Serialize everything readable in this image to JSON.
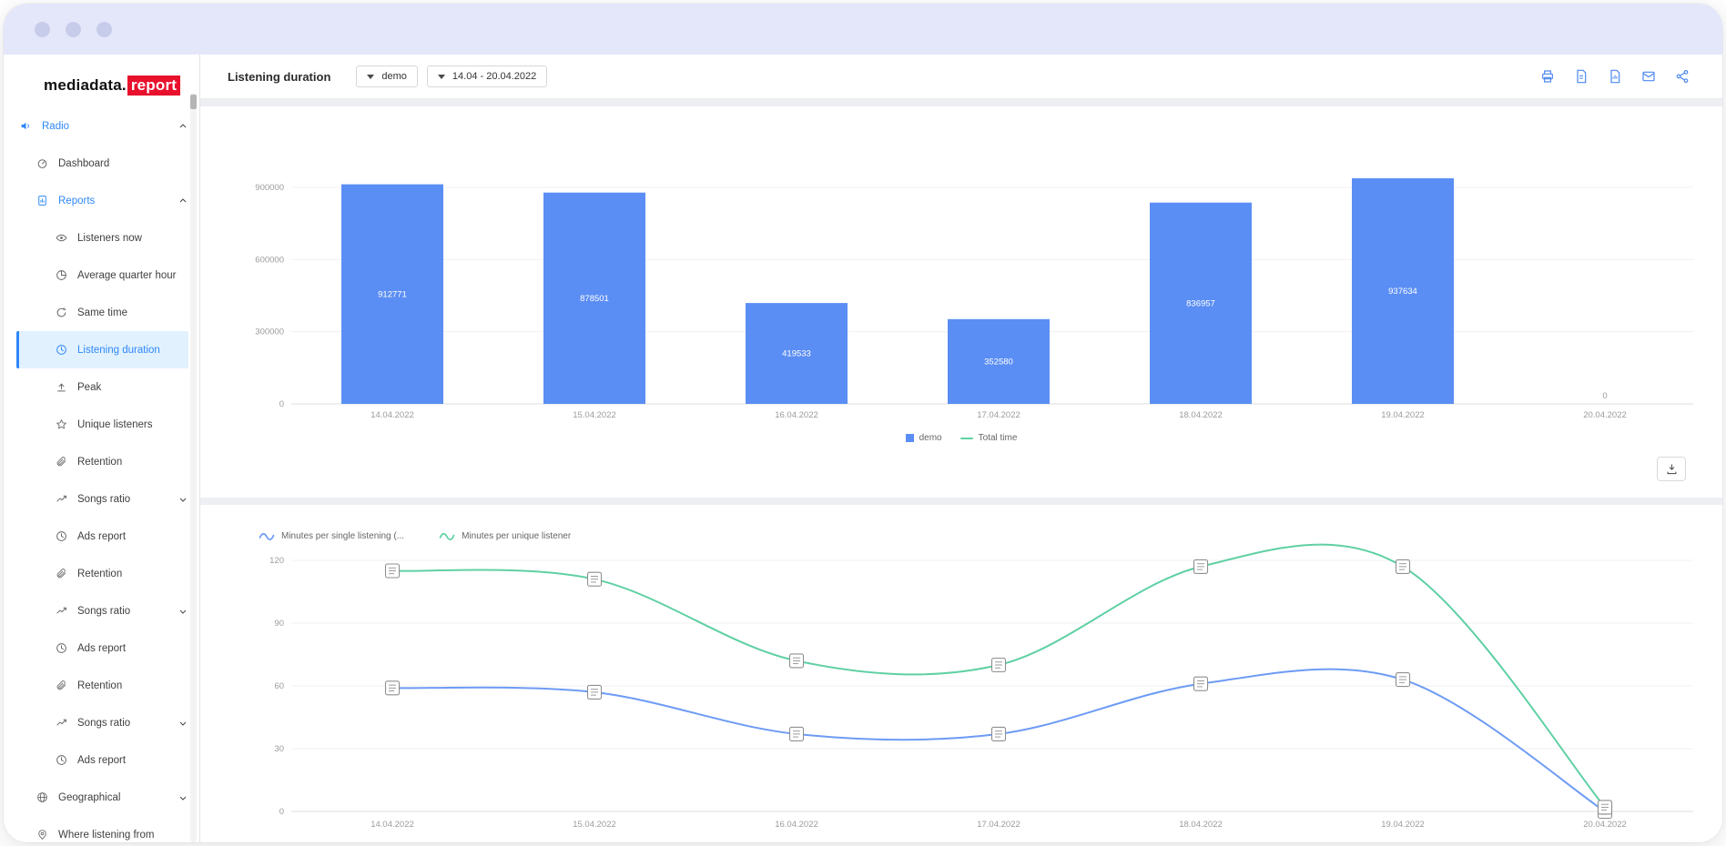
{
  "sidebar": {
    "logo": {
      "brand": "mediadata.",
      "badge": "report"
    },
    "items": [
      {
        "label": "Radio",
        "icon": "speaker-icon",
        "level": 1,
        "accent": true,
        "chevron": "up"
      },
      {
        "label": "Dashboard",
        "icon": "dashboard-icon",
        "level": 2
      },
      {
        "label": "Reports",
        "icon": "reports-icon",
        "level": 2,
        "accent": true,
        "chevron": "up"
      },
      {
        "label": "Listeners now",
        "icon": "eye-icon",
        "level": 3
      },
      {
        "label": "Average quarter hour",
        "icon": "pie-icon",
        "level": 3
      },
      {
        "label": "Same time",
        "icon": "refresh-icon",
        "level": 3
      },
      {
        "label": "Listening duration",
        "icon": "clock-icon",
        "level": 3,
        "active": true
      },
      {
        "label": "Peak",
        "icon": "peak-icon",
        "level": 3
      },
      {
        "label": "Unique listeners",
        "icon": "star-icon",
        "level": 3
      },
      {
        "label": "Retention",
        "icon": "paperclip-icon",
        "level": 3
      },
      {
        "label": "Songs ratio",
        "icon": "trend-icon",
        "level": 3,
        "chevron": "down"
      },
      {
        "label": "Ads report",
        "icon": "clock-icon",
        "level": 3
      },
      {
        "label": "Retention",
        "icon": "paperclip-icon",
        "level": 3
      },
      {
        "label": "Songs ratio",
        "icon": "trend-icon",
        "level": 3,
        "chevron": "down"
      },
      {
        "label": "Ads report",
        "icon": "clock-icon",
        "level": 3
      },
      {
        "label": "Retention",
        "icon": "paperclip-icon",
        "level": 3
      },
      {
        "label": "Songs ratio",
        "icon": "trend-icon",
        "level": 3,
        "chevron": "down"
      },
      {
        "label": "Ads report",
        "icon": "clock-icon",
        "level": 3
      },
      {
        "label": "Geographical",
        "icon": "globe-icon",
        "level": 2,
        "chevron": "down"
      },
      {
        "label": "Where listening from",
        "icon": "location-icon",
        "level": 2
      }
    ]
  },
  "header": {
    "title": "Listening duration",
    "filters": [
      {
        "name": "stream-filter",
        "value": "demo"
      },
      {
        "name": "daterange-filter",
        "value": "14.04 - 20.04.2022"
      }
    ],
    "action_icons": [
      "printer-icon",
      "export-file-icon",
      "export-report-icon",
      "mail-icon",
      "share-icon"
    ]
  },
  "chart_data": [
    {
      "type": "bar",
      "categories": [
        "14.04.2022",
        "15.04.2022",
        "16.04.2022",
        "17.04.2022",
        "18.04.2022",
        "19.04.2022",
        "20.04.2022"
      ],
      "series": [
        {
          "name": "demo",
          "color": "#5b8ef4",
          "values": [
            912771,
            878501,
            419533,
            352580,
            836957,
            937634,
            0
          ]
        }
      ],
      "bar_labels": [
        "912771",
        "878501",
        "419533",
        "352580",
        "836957",
        "937634",
        "0"
      ],
      "legend": [
        {
          "label": "demo",
          "color": "#5b8ef4",
          "shape": "square"
        },
        {
          "label": "Total time",
          "color": "#62d2a2",
          "shape": "line"
        }
      ],
      "ylim": [
        0,
        960000
      ],
      "yticks": [
        0,
        300000,
        600000,
        900000
      ],
      "ytick_labels": [
        "0",
        "300000",
        "600000",
        "900000"
      ],
      "grid": true,
      "legend_position": "bottom-center"
    },
    {
      "type": "line",
      "categories": [
        "14.04.2022",
        "15.04.2022",
        "16.04.2022",
        "17.04.2022",
        "18.04.2022",
        "19.04.2022",
        "20.04.2022"
      ],
      "series": [
        {
          "name": "Minutes per single listening (...",
          "color": "#6d9bf5",
          "values": [
            59,
            57,
            37,
            37,
            61,
            63,
            0
          ]
        },
        {
          "name": "Minutes per unique listener",
          "color": "#5fd0a3",
          "values": [
            115,
            111,
            72,
            70,
            117,
            117,
            2
          ]
        }
      ],
      "ylim": [
        0,
        120
      ],
      "yticks": [
        0,
        30,
        60,
        90,
        120
      ],
      "ytick_labels": [
        "0",
        "30",
        "60",
        "90",
        "120"
      ],
      "grid": true,
      "legend_position": "top-left",
      "marker": "list-square-icon"
    }
  ],
  "misc": {
    "download_button_icon": "download-icon"
  }
}
